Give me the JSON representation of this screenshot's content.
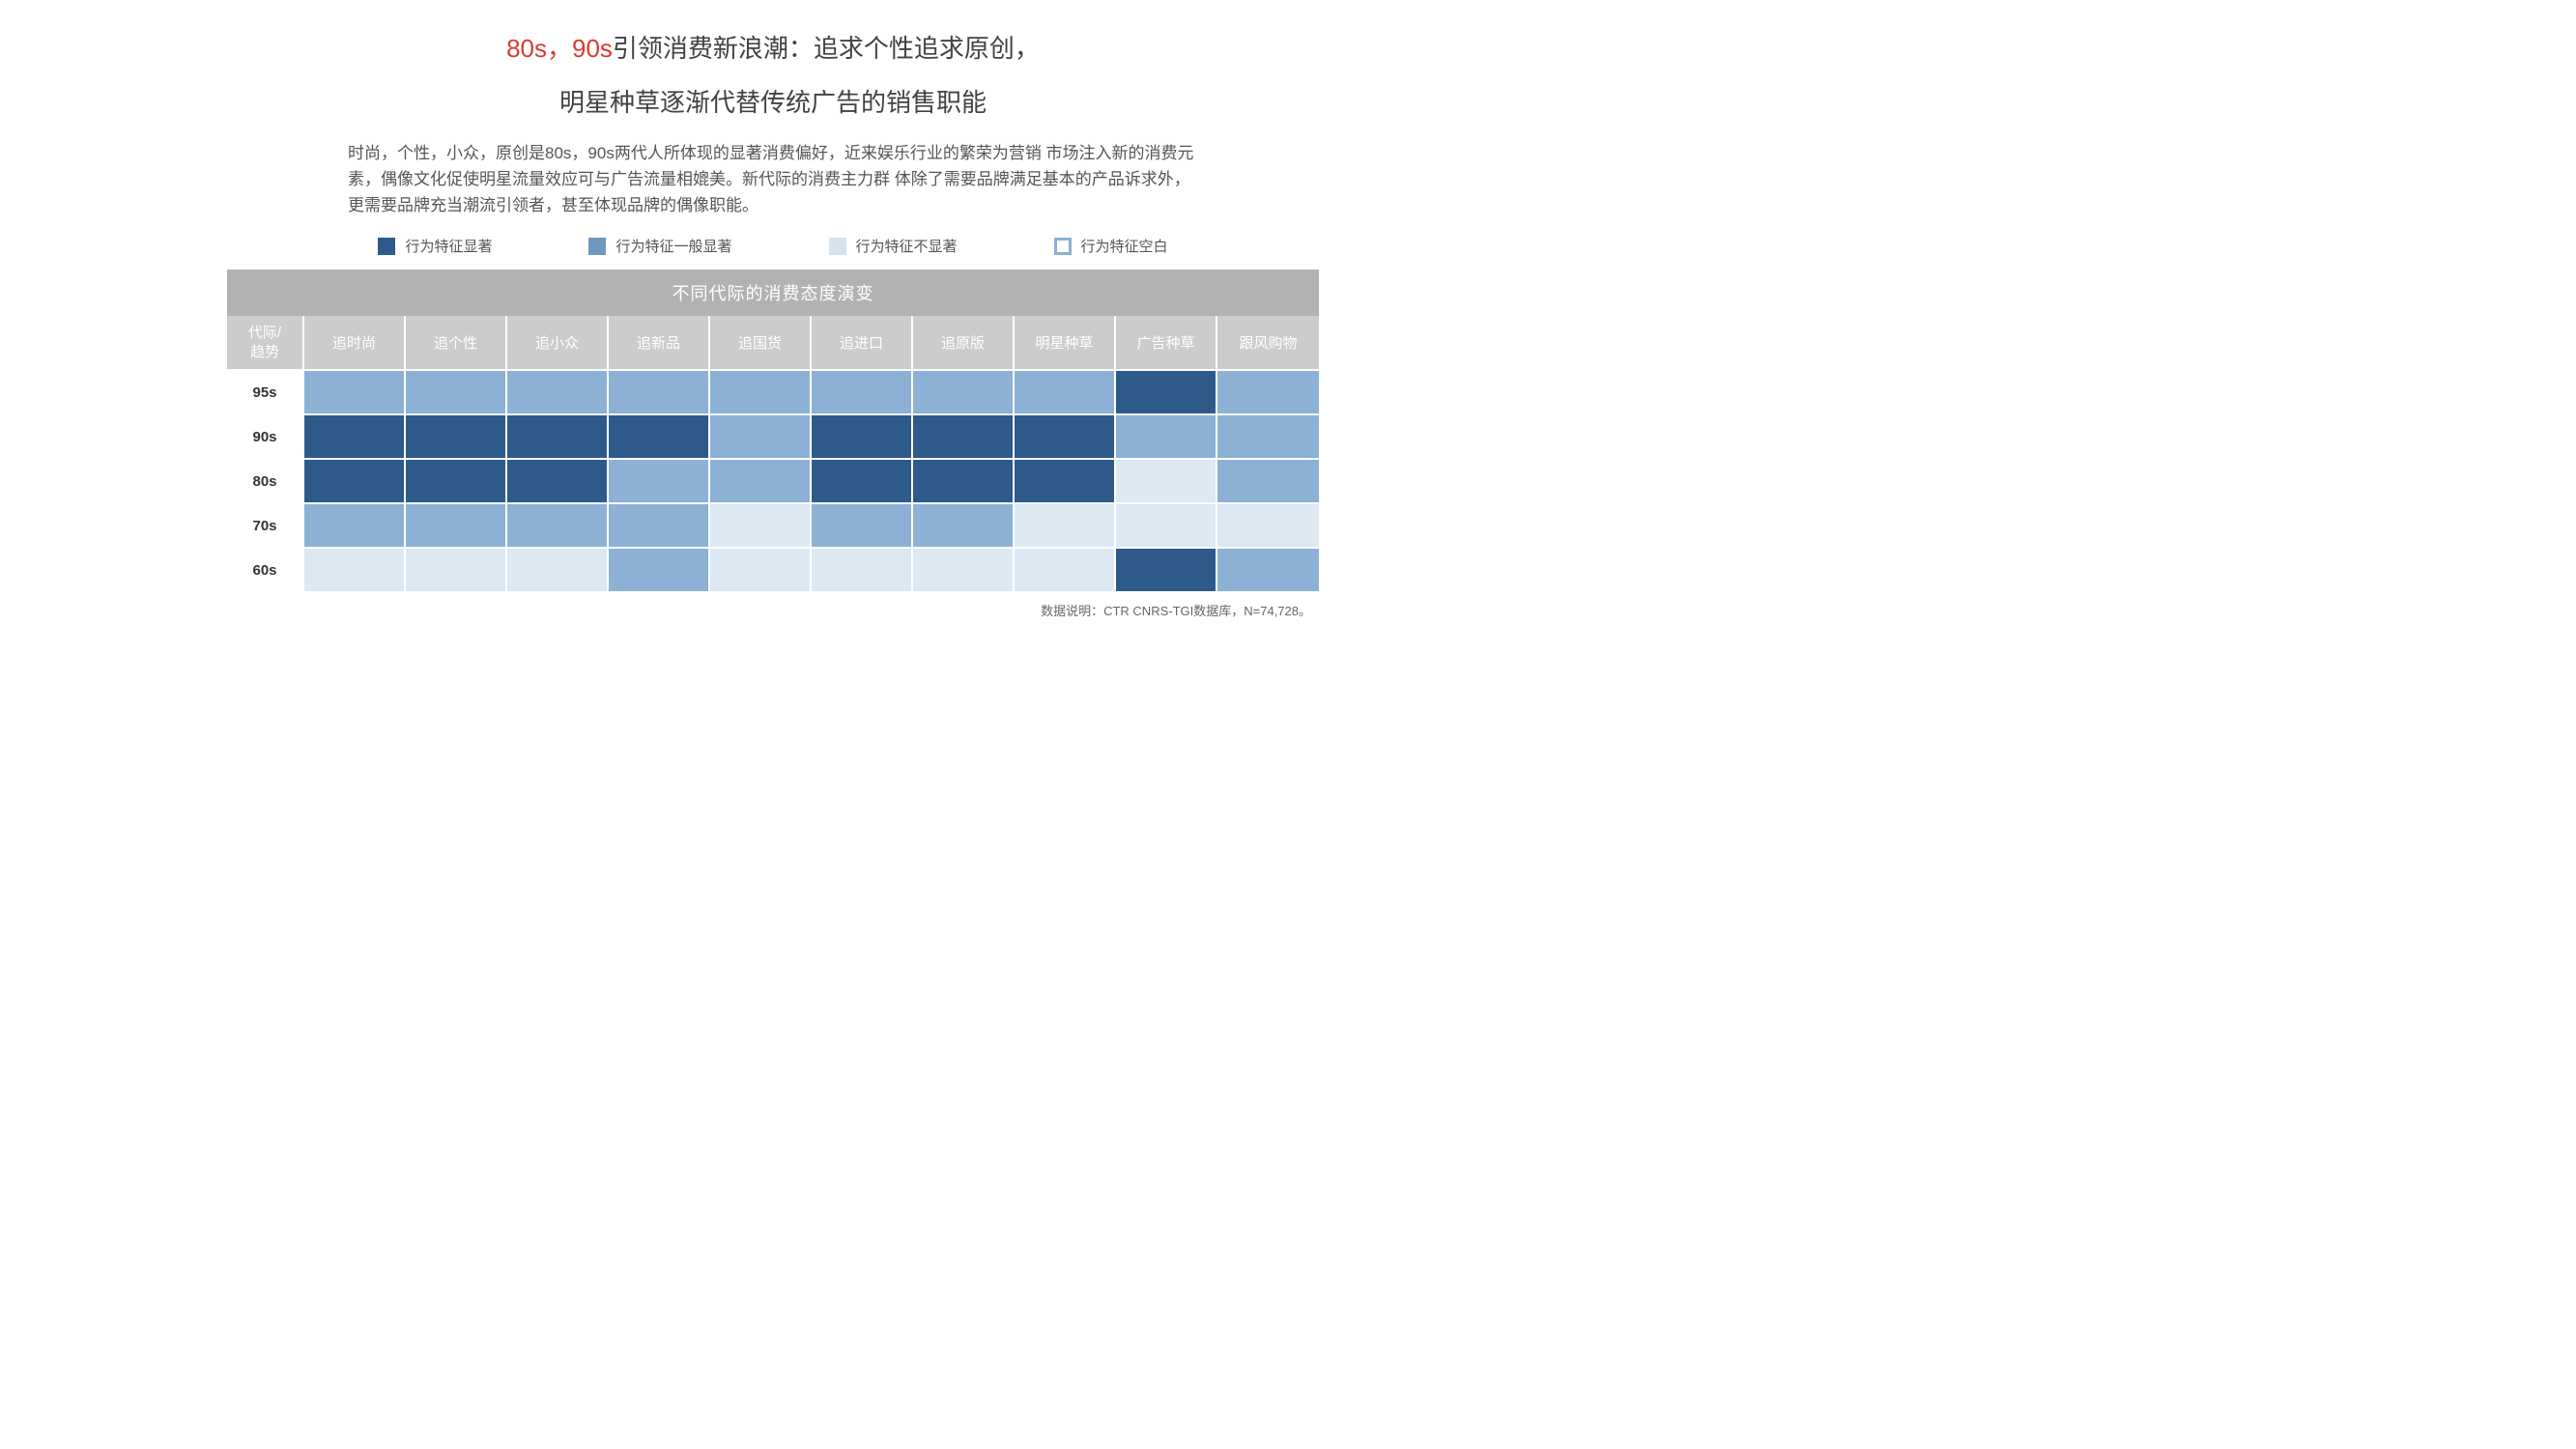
{
  "title_red": "80s，90s",
  "title_rest": "引领消费新浪潮：追求个性追求原创，",
  "subtitle": "明星种草逐渐代替传统广告的销售职能",
  "body": "时尚，个性，小众，原创是80s，90s两代人所体现的显著消费偏好，近来娱乐行业的繁荣为营销 市场注入新的消费元素，偶像文化促使明星流量效应可与广告流量相媲美。新代际的消费主力群 体除了需要品牌满足基本的产品诉求外，更需要品牌充当潮流引领者，甚至体现品牌的偶像职能。",
  "legend": [
    {
      "label": "行为特征显著",
      "color": "#2e5a8a"
    },
    {
      "label": "行为特征一般显著",
      "color": "#6f98c1"
    },
    {
      "label": "行为特征不显著",
      "color": "#d6e3ef"
    },
    {
      "label": "行为特征空白",
      "outline": "#8cb1d4"
    }
  ],
  "table_title": "不同代际的消费态度演变",
  "row_header_label": "代际/\n趋势",
  "columns": [
    "追时尚",
    "追个性",
    "追小众",
    "追新品",
    "追国货",
    "追进口",
    "追原版",
    "明星种草",
    "广告种草",
    "跟风购物"
  ],
  "rows": [
    {
      "label": "95s",
      "cells": [
        "med",
        "med",
        "med",
        "med",
        "med",
        "med",
        "med",
        "med",
        "high",
        "med"
      ]
    },
    {
      "label": "90s",
      "cells": [
        "high",
        "high",
        "high",
        "high",
        "med",
        "high",
        "high",
        "high",
        "med",
        "med"
      ]
    },
    {
      "label": "80s",
      "cells": [
        "high",
        "high",
        "high",
        "med",
        "med",
        "high",
        "high",
        "high",
        "low",
        "med"
      ]
    },
    {
      "label": "70s",
      "cells": [
        "med",
        "med",
        "med",
        "med",
        "low",
        "med",
        "med",
        "low",
        "low",
        "low"
      ]
    },
    {
      "label": "60s",
      "cells": [
        "low",
        "low",
        "low",
        "med",
        "low",
        "low",
        "low",
        "low",
        "high",
        "med"
      ]
    }
  ],
  "level_colors": {
    "high": "#2e5a8a",
    "med": "#8cb1d4",
    "low": "#dce8f2"
  },
  "source": "数据说明：CTR CNRS-TGI数据库，N=74,728。"
}
